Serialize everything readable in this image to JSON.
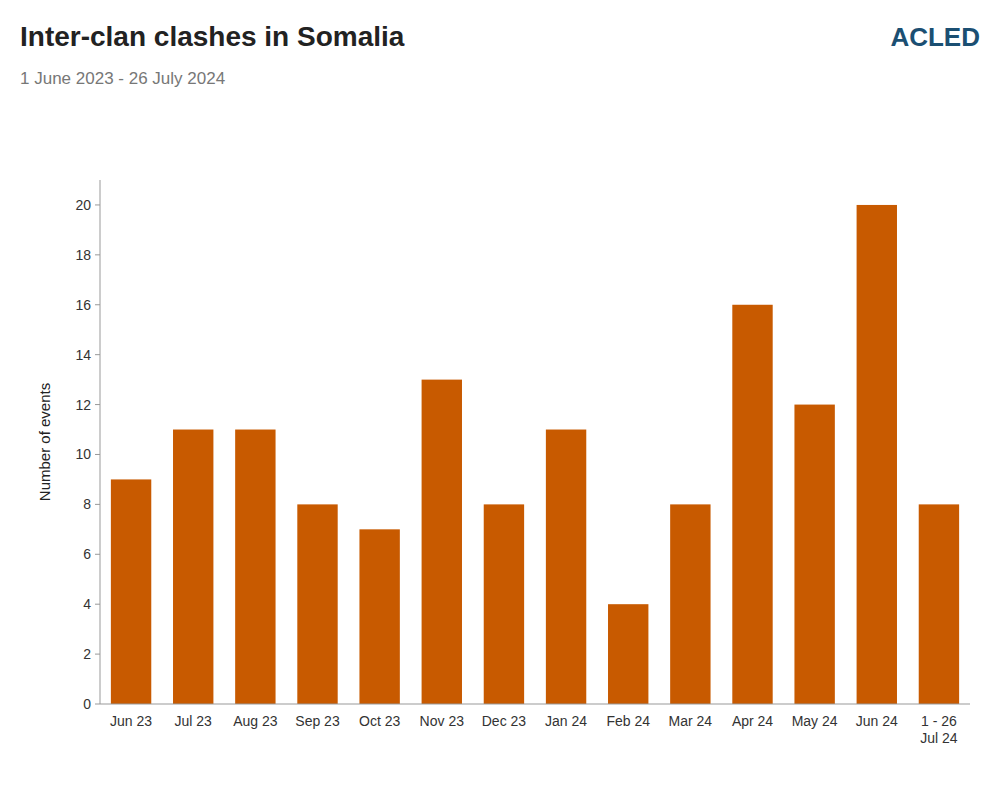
{
  "chart_data": {
    "type": "bar",
    "title": "Inter-clan clashes in Somalia",
    "subtitle": "1 June 2023 - 26 July 2024",
    "ylabel": "Number of events",
    "annotations": [
      "ACLED"
    ],
    "categories": [
      "Jun 23",
      "Jul 23",
      "Aug 23",
      "Sep 23",
      "Oct 23",
      "Nov 23",
      "Dec 23",
      "Jan 24",
      "Feb 24",
      "Mar 24",
      "Apr 24",
      "May 24",
      "Jun 24",
      "1 - 26\nJul 24"
    ],
    "values": [
      9,
      11,
      11,
      8,
      7,
      13,
      8,
      11,
      4,
      8,
      16,
      12,
      20,
      8
    ],
    "color": "#C85A00",
    "ylim": [
      0,
      21
    ],
    "yticks": [
      0,
      2,
      4,
      6,
      8,
      10,
      12,
      14,
      16,
      18,
      20
    ],
    "grid": false
  }
}
